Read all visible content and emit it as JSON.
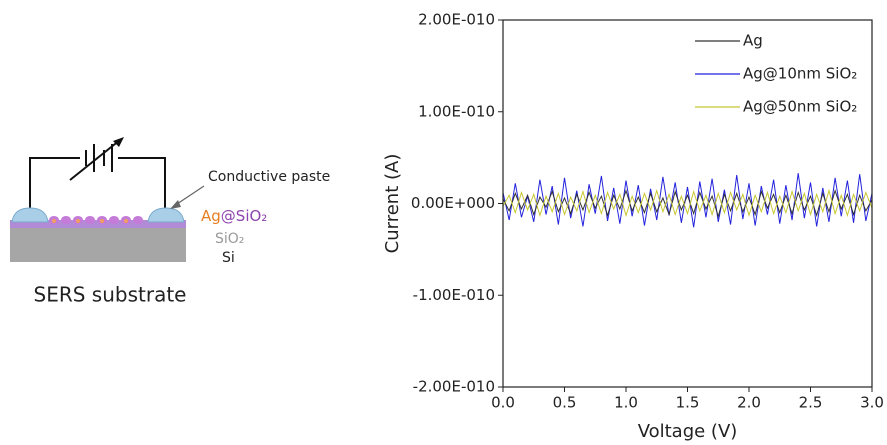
{
  "schematic": {
    "paste_label": "Conductive paste",
    "layer_ag": "Ag",
    "layer_ag_shell": "@SiO₂",
    "layer_sio2": "SiO₂",
    "layer_si": "Si",
    "caption": "SERS substrate"
  },
  "chart_data": {
    "type": "line",
    "x_label": "Voltage (V)",
    "y_label": "Current (A)",
    "xlim": [
      0,
      3
    ],
    "xticks": [
      {
        "value": 0,
        "label": "0.0"
      },
      0.5,
      {
        "value": 1,
        "label": "1.0"
      },
      1.5,
      {
        "value": 2,
        "label": "2.0"
      },
      2.5,
      {
        "value": 3,
        "label": "3.0"
      }
    ],
    "ylim": [
      -2e-10,
      2e-10
    ],
    "yticks": [
      {
        "value": -2e-10,
        "label": "-2.00E-010"
      },
      {
        "value": -1e-10,
        "label": "-1.00E-010"
      },
      {
        "value": 0,
        "label": "0.00E+000"
      },
      {
        "value": 1e-10,
        "label": "1.00E-010"
      },
      {
        "value": 2e-10,
        "label": "2.00E-010"
      }
    ],
    "legend": "upper right",
    "x": [
      0,
      0.05,
      0.1,
      0.15,
      0.2,
      0.25,
      0.3,
      0.35,
      0.4,
      0.45,
      0.5,
      0.55,
      0.6,
      0.65,
      0.7,
      0.75,
      0.8,
      0.85,
      0.9,
      0.95,
      1,
      1.05,
      1.1,
      1.15,
      1.2,
      1.25,
      1.3,
      1.35,
      1.4,
      1.45,
      1.5,
      1.55,
      1.6,
      1.65,
      1.7,
      1.75,
      1.8,
      1.85,
      1.9,
      1.95,
      2,
      2.05,
      2.1,
      2.15,
      2.2,
      2.25,
      2.3,
      2.35,
      2.4,
      2.45,
      2.5,
      2.55,
      2.6,
      2.65,
      2.7,
      2.75,
      2.8,
      2.85,
      2.9,
      2.95,
      3
    ],
    "series": [
      {
        "name": "Ag",
        "color": "#333333",
        "values": [
          5e-12,
          -8e-12,
          1.1e-11,
          -6e-12,
          9e-12,
          -1.2e-11,
          7e-12,
          -4e-12,
          1.3e-11,
          -9e-12,
          6e-12,
          -1.1e-11,
          1e-11,
          -7e-12,
          1.2e-11,
          -5e-12,
          8e-12,
          -1.3e-11,
          9e-12,
          -6e-12,
          1.4e-11,
          -8e-12,
          7e-12,
          -1e-11,
          1.1e-11,
          -9e-12,
          6e-12,
          -1.2e-11,
          1.3e-11,
          -7e-12,
          9e-12,
          -1.1e-11,
          1.2e-11,
          -6e-12,
          8e-12,
          -1.4e-11,
          1e-11,
          -8e-12,
          1.1e-11,
          -9e-12,
          7e-12,
          -1.2e-11,
          1.3e-11,
          -5e-12,
          1e-11,
          -1e-11,
          9e-12,
          -1.1e-11,
          1.2e-11,
          -7e-12,
          8e-12,
          -1.3e-11,
          1.1e-11,
          -9e-12,
          1.4e-11,
          -6e-12,
          1e-11,
          -1.2e-11,
          9e-12,
          -8e-12,
          4e-12
        ]
      },
      {
        "name": "Ag@10nm SiO₂",
        "color": "#2222dd",
        "values": [
          1.2e-11,
          -1.8e-11,
          2.2e-11,
          -1.5e-11,
          8e-12,
          -2e-11,
          2.6e-11,
          -1.2e-11,
          1.9e-11,
          -2.3e-11,
          2.8e-11,
          -1.6e-11,
          1.4e-11,
          -2.5e-11,
          2.1e-11,
          -1.1e-11,
          3e-11,
          -1.9e-11,
          1.7e-11,
          -2.2e-11,
          2.5e-11,
          -1.4e-11,
          2e-11,
          -2.4e-11,
          1.6e-11,
          -1.8e-11,
          2.9e-11,
          -1.3e-11,
          2.3e-11,
          -2.1e-11,
          1.8e-11,
          -2.6e-11,
          2.4e-11,
          -1.5e-11,
          2.7e-11,
          -2e-11,
          1.5e-11,
          -2.3e-11,
          3.1e-11,
          -1.7e-11,
          2.2e-11,
          -2.4e-11,
          1.9e-11,
          -1.2e-11,
          2.6e-11,
          -2.2e-11,
          2e-11,
          -1.8e-11,
          3.3e-11,
          -1.6e-11,
          2.3e-11,
          -2.5e-11,
          1.7e-11,
          -2e-11,
          2.8e-11,
          -1.4e-11,
          2.5e-11,
          -2.1e-11,
          3.2e-11,
          -1.9e-11,
          1.1e-11
        ]
      },
      {
        "name": "Ag@50nm SiO₂",
        "color": "#c8c832",
        "values": [
          -3e-12,
          9e-12,
          -1e-11,
          1.2e-11,
          -7e-12,
          1e-11,
          -1.3e-11,
          8e-12,
          -9e-12,
          1.1e-11,
          -1.2e-11,
          7e-12,
          -8e-12,
          1.3e-11,
          -1e-11,
          9e-12,
          -1.1e-11,
          1.2e-11,
          -6e-12,
          1e-11,
          -1.3e-11,
          8e-12,
          -1e-11,
          1.1e-11,
          -7e-12,
          1.4e-11,
          -9e-12,
          1e-11,
          -1.2e-11,
          8e-12,
          -1.1e-11,
          1.3e-11,
          -8e-12,
          9e-12,
          -1.2e-11,
          1.1e-11,
          -1e-11,
          1.2e-11,
          -7e-12,
          1e-11,
          -1.3e-11,
          9e-12,
          -9e-12,
          1.2e-11,
          -1.1e-11,
          8e-12,
          -1e-11,
          1.3e-11,
          -8e-12,
          1.1e-11,
          -1.2e-11,
          1e-11,
          -9e-12,
          1.4e-11,
          -1.1e-11,
          9e-12,
          -1.3e-11,
          1e-11,
          -8e-12,
          1.2e-11,
          -5e-12
        ]
      }
    ]
  }
}
